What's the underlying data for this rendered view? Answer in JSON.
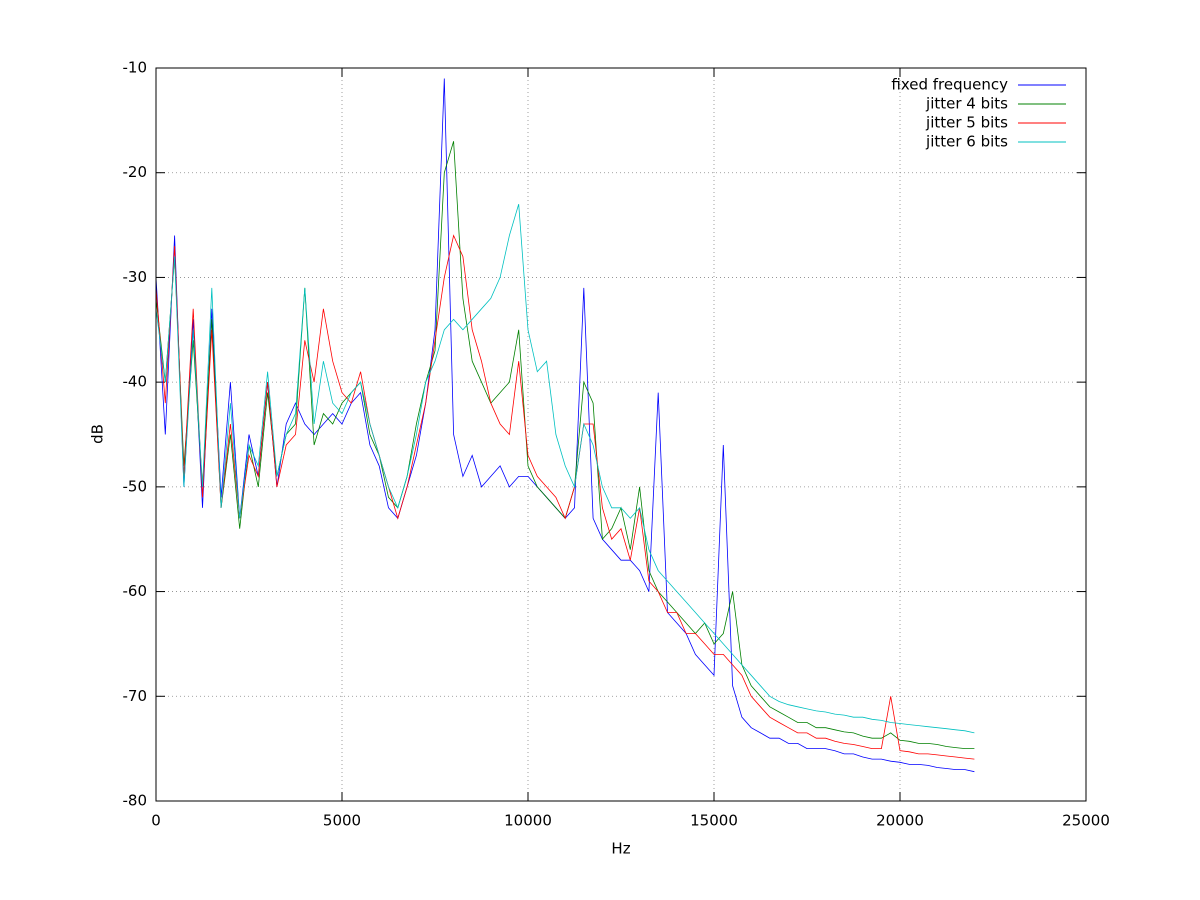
{
  "chart_data": {
    "type": "line",
    "xlabel": "Hz",
    "ylabel": "dB",
    "xlim": [
      0,
      25000
    ],
    "xticks": [
      0,
      5000,
      10000,
      15000,
      20000,
      25000
    ],
    "ylim": [
      -80,
      -10
    ],
    "yticks": [
      -80,
      -70,
      -60,
      -50,
      -40,
      -30,
      -20,
      -10
    ],
    "grid": true,
    "legend": "top-right",
    "x": [
      0,
      250,
      500,
      750,
      1000,
      1250,
      1500,
      1750,
      2000,
      2250,
      2500,
      2750,
      3000,
      3250,
      3500,
      3750,
      4000,
      4250,
      4500,
      4750,
      5000,
      5250,
      5500,
      5750,
      6000,
      6250,
      6500,
      6750,
      7000,
      7250,
      7500,
      7750,
      8000,
      8250,
      8500,
      8750,
      9000,
      9250,
      9500,
      9750,
      10000,
      10250,
      10500,
      10750,
      11000,
      11250,
      11500,
      11750,
      12000,
      12250,
      12500,
      12750,
      13000,
      13250,
      13500,
      13750,
      14000,
      14250,
      14500,
      14750,
      15000,
      15250,
      15500,
      15750,
      16000,
      16250,
      16500,
      16750,
      17000,
      17250,
      17500,
      17750,
      18000,
      18250,
      18500,
      18750,
      19000,
      19250,
      19500,
      19750,
      20000,
      20250,
      20500,
      20750,
      21000,
      21250,
      21500,
      21750,
      22000
    ],
    "series": [
      {
        "name": "fixed frequency",
        "color": "#0000ff",
        "values": [
          -30,
          -45,
          -26,
          -50,
          -34,
          -52,
          -33,
          -51,
          -40,
          -53,
          -45,
          -49,
          -40,
          -50,
          -44,
          -42,
          -44,
          -45,
          -44,
          -43,
          -44,
          -42,
          -41,
          -46,
          -48,
          -52,
          -53,
          -50,
          -47,
          -42,
          -35,
          -11,
          -45,
          -49,
          -47,
          -50,
          -49,
          -48,
          -50,
          -49,
          -49,
          -50,
          -51,
          -52,
          -53,
          -52,
          -31,
          -53,
          -55,
          -56,
          -57,
          -57,
          -58,
          -60,
          -41,
          -62,
          -63,
          -64,
          -66,
          -67,
          -68,
          -46,
          -69,
          -72,
          -73,
          -73.5,
          -74,
          -74,
          -74.5,
          -74.5,
          -75,
          -75,
          -75,
          -75.2,
          -75.5,
          -75.5,
          -75.8,
          -76,
          -76,
          -76.2,
          -76.3,
          -76.5,
          -76.5,
          -76.6,
          -76.8,
          -76.9,
          -77,
          -77,
          -77.2
        ]
      },
      {
        "name": "jitter 4 bits",
        "color": "#008000",
        "values": [
          -32,
          -40,
          -28,
          -48,
          -36,
          -50,
          -34,
          -52,
          -45,
          -54,
          -46,
          -50,
          -41,
          -49,
          -45,
          -44,
          -31,
          -46,
          -43,
          -44,
          -42,
          -41,
          -40,
          -45,
          -47,
          -51,
          -52,
          -49,
          -44,
          -40,
          -37,
          -20,
          -17,
          -32,
          -38,
          -40,
          -42,
          -41,
          -40,
          -35,
          -48,
          -50,
          -51,
          -52,
          -53,
          -50,
          -40,
          -42,
          -55,
          -54,
          -52,
          -56,
          -50,
          -58,
          -60,
          -61,
          -62,
          -63,
          -64,
          -63,
          -65,
          -64,
          -60,
          -67,
          -69,
          -70,
          -71,
          -71.5,
          -72,
          -72.5,
          -72.5,
          -73,
          -73,
          -73.2,
          -73.4,
          -73.5,
          -73.8,
          -74,
          -74,
          -73.5,
          -74.2,
          -74.3,
          -74.5,
          -74.5,
          -74.6,
          -74.8,
          -74.9,
          -75,
          -75
        ]
      },
      {
        "name": "jitter 5 bits",
        "color": "#ff0000",
        "values": [
          -31,
          -42,
          -27,
          -49,
          -33,
          -51,
          -35,
          -52,
          -44,
          -53,
          -47,
          -49,
          -40,
          -50,
          -46,
          -45,
          -36,
          -40,
          -33,
          -38,
          -41,
          -42,
          -39,
          -44,
          -47,
          -50,
          -53,
          -50,
          -46,
          -42,
          -36,
          -30,
          -26,
          -28,
          -35,
          -38,
          -42,
          -44,
          -45,
          -38,
          -47,
          -49,
          -50,
          -51,
          -53,
          -50,
          -44,
          -44,
          -52,
          -55,
          -54,
          -57,
          -52,
          -59,
          -60,
          -62,
          -62,
          -64,
          -64,
          -65,
          -66,
          -66,
          -67,
          -68,
          -70,
          -71,
          -72,
          -72.5,
          -73,
          -73.5,
          -73.5,
          -74,
          -74,
          -74.3,
          -74.5,
          -74.6,
          -74.8,
          -75,
          -75,
          -70,
          -75.2,
          -75.3,
          -75.5,
          -75.5,
          -75.6,
          -75.7,
          -75.8,
          -75.9,
          -76
        ]
      },
      {
        "name": "jitter 6 bits",
        "color": "#00c0c0",
        "values": [
          -33,
          -40,
          -28,
          -50,
          -35,
          -50,
          -31,
          -52,
          -42,
          -53,
          -46,
          -48,
          -39,
          -49,
          -45,
          -43,
          -31,
          -44,
          -38,
          -42,
          -43,
          -41,
          -40,
          -44,
          -47,
          -50,
          -52,
          -49,
          -45,
          -40,
          -38,
          -35,
          -34,
          -35,
          -34,
          -33,
          -32,
          -30,
          -26,
          -23,
          -35,
          -39,
          -38,
          -45,
          -48,
          -50,
          -44,
          -46,
          -50,
          -52,
          -52,
          -53,
          -52,
          -56,
          -58,
          -59,
          -60,
          -61,
          -62,
          -63,
          -64,
          -65,
          -66,
          -67,
          -68,
          -69,
          -70,
          -70.5,
          -70.8,
          -71,
          -71.2,
          -71.4,
          -71.5,
          -71.7,
          -71.8,
          -72,
          -72,
          -72.2,
          -72.3,
          -72.5,
          -72.6,
          -72.7,
          -72.8,
          -72.9,
          -73,
          -73.1,
          -73.2,
          -73.3,
          -73.5
        ]
      }
    ]
  }
}
